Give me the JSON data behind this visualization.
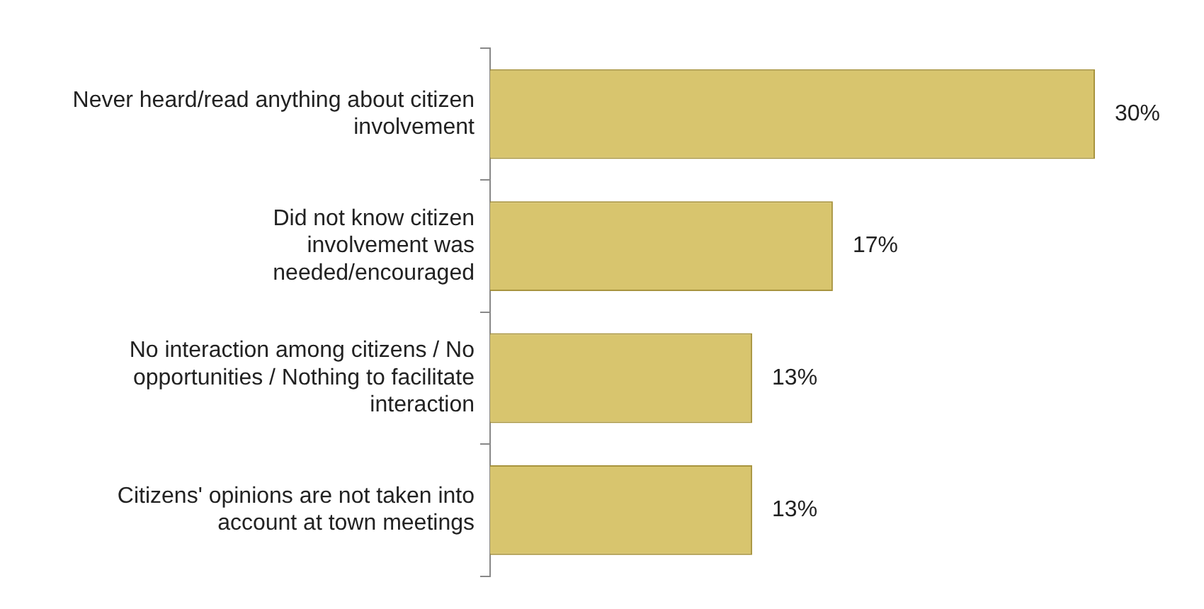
{
  "chart_data": {
    "type": "bar",
    "orientation": "horizontal",
    "categories": [
      "Never heard/read anything about citizen involvement",
      "Did not know citizen involvement was needed/encouraged",
      "No interaction among citizens / No opportunities / Nothing to facilitate interaction",
      "Citizens' opinions are not taken into account at town meetings"
    ],
    "values": [
      30,
      17,
      13,
      13
    ],
    "value_labels": [
      "30%",
      "17%",
      "13%",
      "13%"
    ],
    "color": "#d8c56e",
    "legend": false,
    "grid": false
  }
}
